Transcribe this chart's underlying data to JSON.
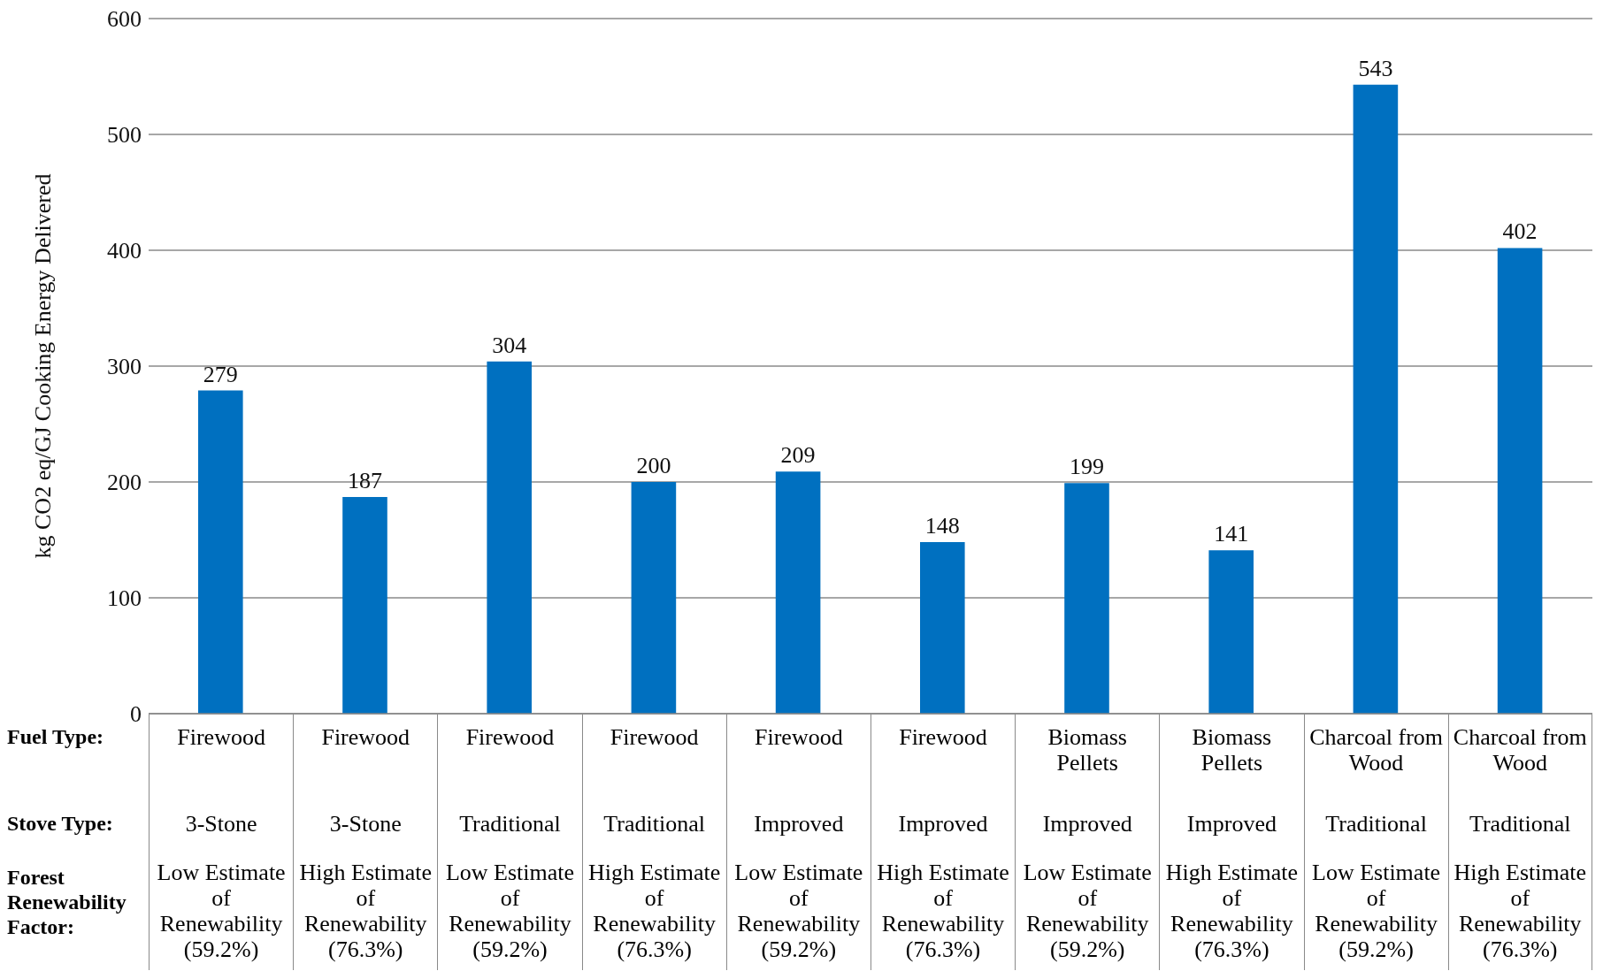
{
  "chart_data": {
    "type": "bar",
    "ylabel": "kg CO2 eq/GJ Cooking Energy Delivered",
    "categories": [
      "Firewood\n3-Stone\nLow Estimate of Renewability (59.2%)",
      "Firewood\n3-Stone\nHigh Estimate of Renewability (76.3%)",
      "Firewood\nTraditional\nLow Estimate of Renewability (59.2%)",
      "Firewood\nTraditional\nHigh Estimate of Renewability (76.3%)",
      "Firewood\nImproved\nLow Estimate of Renewability (59.2%)",
      "Firewood\nImproved\nHigh Estimate of Renewability (76.3%)",
      "Biomass Pellets\nImproved\nLow Estimate of Renewability (59.2%)",
      "Biomass Pellets\nImproved\nHigh Estimate of Renewability (76.3%)",
      "Charcoal from Wood\nTraditional\nLow Estimate of Renewability (59.2%)",
      "Charcoal from Wood\nTraditional\nHigh Estimate of Renewability (76.3%)"
    ],
    "values": [
      279,
      187,
      304,
      200,
      209,
      148,
      199,
      141,
      543,
      402
    ],
    "color": "#0070c0",
    "ylim": [
      0,
      600
    ],
    "yticks": [
      0,
      100,
      200,
      300,
      400,
      500,
      600
    ],
    "grid": "y",
    "data_labels": true,
    "annotations": [
      "Fuel Type:",
      "Stove Type:",
      "Forest Renewability Factor:"
    ]
  }
}
